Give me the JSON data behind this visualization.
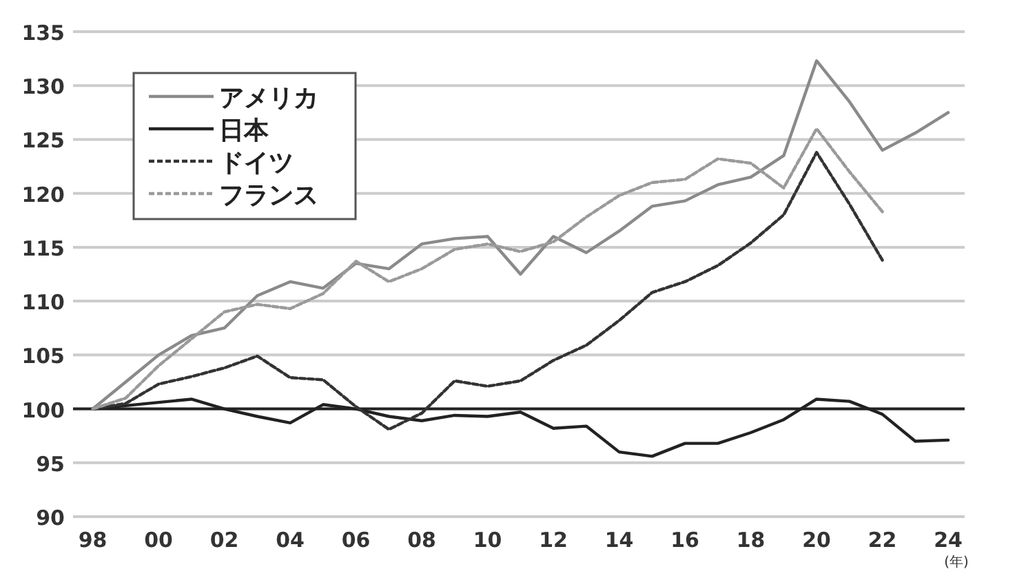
{
  "chart_data": {
    "type": "line",
    "xlabel": "(年)",
    "x": [
      1998,
      1999,
      2000,
      2001,
      2002,
      2003,
      2004,
      2005,
      2006,
      2007,
      2008,
      2009,
      2010,
      2011,
      2012,
      2013,
      2014,
      2015,
      2016,
      2017,
      2018,
      2019,
      2020,
      2021,
      2022,
      2023,
      2024
    ],
    "series": [
      {
        "name": "アメリカ",
        "color": "#8a8a8a",
        "line_style": "solid",
        "values": [
          100,
          102.5,
          105,
          106.8,
          107.5,
          110.5,
          111.8,
          111.2,
          113.5,
          113,
          115.3,
          115.8,
          116,
          112.5,
          116,
          114.5,
          116.5,
          118.8,
          119.3,
          120.8,
          121.5,
          123.5,
          132.3,
          128.5,
          124,
          125.6,
          127.5
        ]
      },
      {
        "name": "日本",
        "color": "#222222",
        "line_style": "solid",
        "values": [
          100,
          100.3,
          100.6,
          100.9,
          100,
          99.3,
          98.7,
          100.4,
          100,
          99.3,
          98.9,
          99.4,
          99.3,
          99.7,
          98.2,
          98.4,
          96,
          95.6,
          96.8,
          96.8,
          97.8,
          99,
          100.9,
          100.7,
          99.5,
          97,
          97.1
        ]
      },
      {
        "name": "ドイツ",
        "color": "#333333",
        "line_style": "dashed",
        "values": [
          100,
          100.5,
          102.3,
          103,
          103.8,
          104.9,
          102.9,
          102.7,
          100.2,
          98.1,
          99.6,
          102.6,
          102.1,
          102.6,
          104.5,
          105.9,
          108.2,
          110.8,
          111.8,
          113.3,
          115.4,
          118,
          123.8,
          119,
          113.8,
          null,
          null
        ]
      },
      {
        "name": "フランス",
        "color": "#9a9a9a",
        "line_style": "dashed",
        "values": [
          100,
          101,
          104,
          106.5,
          109,
          109.7,
          109.3,
          110.7,
          113.7,
          111.8,
          113,
          114.8,
          115.3,
          114.6,
          115.5,
          117.8,
          119.8,
          121,
          121.3,
          123.2,
          122.8,
          120.5,
          126,
          122,
          118.3,
          null,
          null
        ]
      }
    ],
    "xlim": [
      1997.4,
      2024.5
    ],
    "xticks": [
      {
        "value": 1998,
        "label": "98"
      },
      {
        "value": 2000,
        "label": "00"
      },
      {
        "value": 2002,
        "label": "02"
      },
      {
        "value": 2004,
        "label": "04"
      },
      {
        "value": 2006,
        "label": "06"
      },
      {
        "value": 2008,
        "label": "08"
      },
      {
        "value": 2010,
        "label": "10"
      },
      {
        "value": 2012,
        "label": "12"
      },
      {
        "value": 2014,
        "label": "14"
      },
      {
        "value": 2016,
        "label": "16"
      },
      {
        "value": 2018,
        "label": "18"
      },
      {
        "value": 2020,
        "label": "20"
      },
      {
        "value": 2022,
        "label": "22"
      },
      {
        "value": 2024,
        "label": "24"
      }
    ],
    "ylim": [
      90,
      135
    ],
    "yticks": [
      90,
      95,
      100,
      105,
      110,
      115,
      120,
      125,
      130,
      135
    ],
    "ref_lines": [
      {
        "axis": "y",
        "value": 100,
        "color": "#222222"
      }
    ],
    "grid": "y",
    "legend": "top left",
    "marker": "none"
  }
}
